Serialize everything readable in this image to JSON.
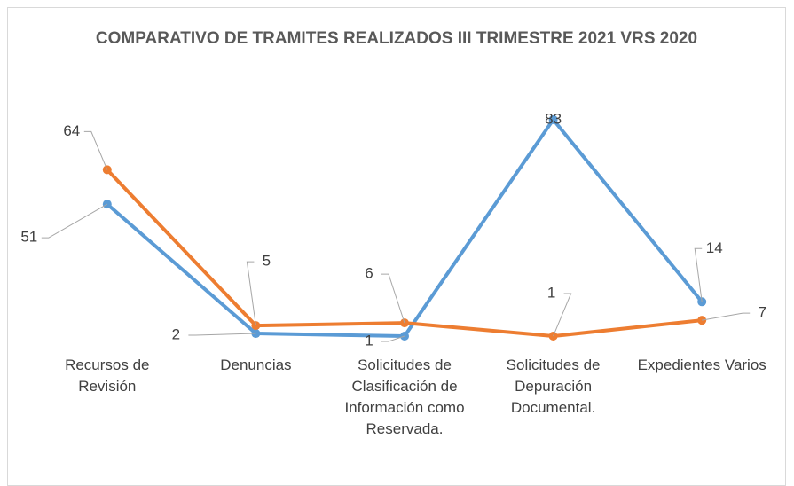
{
  "chart_data": {
    "type": "line",
    "title": "COMPARATIVO DE TRAMITES REALIZADOS III TRIMESTRE 2021 VRS 2020",
    "categories": [
      "Recursos de Revisión",
      "Denuncias",
      "Solicitudes de Clasificación de Información como Reservada.",
      "Solicitudes de Depuración Documental.",
      "Expedientes Varios"
    ],
    "series": [
      {
        "color": "#5b9bd5",
        "values": [
          51,
          2,
          1,
          83,
          14
        ]
      },
      {
        "color": "#ed7d31",
        "values": [
          64,
          5,
          6,
          1,
          7
        ]
      }
    ],
    "ylim": [
      0,
      90
    ]
  }
}
